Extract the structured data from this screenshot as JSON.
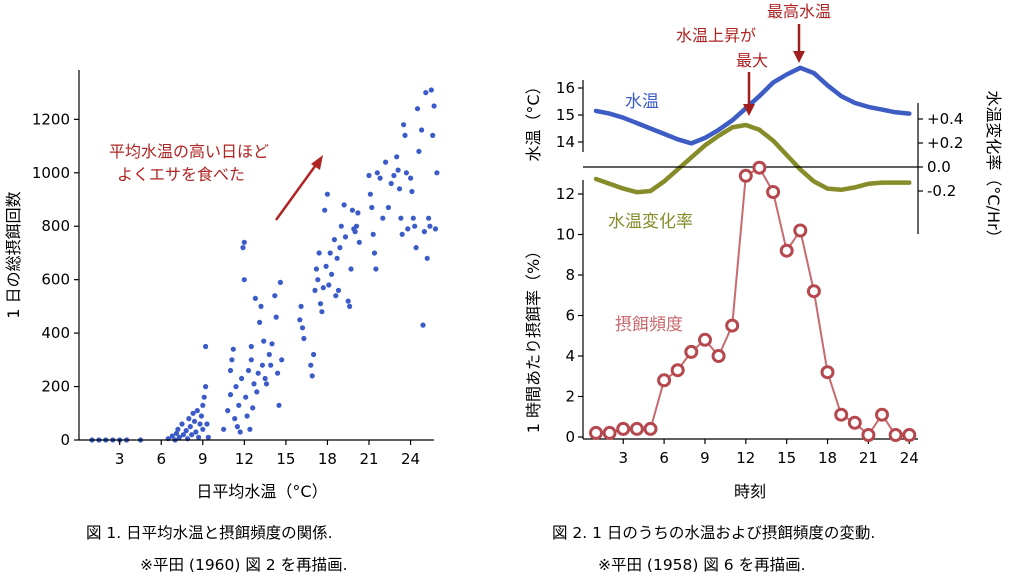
{
  "chart_data": [
    {
      "type": "scatter",
      "ylabel": "1 日の総摂餌回数",
      "xlabel": "日平均水温（°C）",
      "xticks": [
        3,
        6,
        9,
        12,
        15,
        18,
        21,
        24
      ],
      "yticks": [
        0,
        200,
        400,
        600,
        800,
        1000,
        1200
      ],
      "xlim": [
        0,
        26.5
      ],
      "ylim": [
        0,
        1330
      ],
      "color": "#3b5bc8",
      "annotation": [
        "平均水温の高い日ほど",
        "よくエサを食べた"
      ],
      "annotation_color": "#b02424",
      "caption": [
        "図 1. 日平均水温と摂餌頻度の関係.",
        "※平田 (1960) 図 2 を再描画."
      ],
      "points": [
        [
          1.0,
          0
        ],
        [
          1.5,
          0
        ],
        [
          2.0,
          0
        ],
        [
          2.5,
          0
        ],
        [
          3.0,
          0
        ],
        [
          3.5,
          0
        ],
        [
          4.5,
          0
        ],
        [
          6.5,
          5
        ],
        [
          6.8,
          15
        ],
        [
          7.0,
          0
        ],
        [
          7.1,
          25
        ],
        [
          7.2,
          40
        ],
        [
          7.3,
          10
        ],
        [
          7.5,
          60
        ],
        [
          7.6,
          20
        ],
        [
          7.8,
          35
        ],
        [
          7.9,
          5
        ],
        [
          8.0,
          80
        ],
        [
          8.1,
          50
        ],
        [
          8.2,
          20
        ],
        [
          8.3,
          100
        ],
        [
          8.4,
          70
        ],
        [
          8.5,
          30
        ],
        [
          8.6,
          110
        ],
        [
          8.7,
          10
        ],
        [
          8.8,
          60
        ],
        [
          8.9,
          90
        ],
        [
          9.0,
          40
        ],
        [
          9.0,
          130
        ],
        [
          9.1,
          160
        ],
        [
          9.2,
          200
        ],
        [
          9.2,
          350
        ],
        [
          9.3,
          60
        ],
        [
          9.4,
          10
        ],
        [
          10.5,
          40
        ],
        [
          10.8,
          110
        ],
        [
          11.0,
          170
        ],
        [
          11.0,
          260
        ],
        [
          11.1,
          300
        ],
        [
          11.2,
          340
        ],
        [
          11.3,
          80
        ],
        [
          11.4,
          200
        ],
        [
          11.5,
          50
        ],
        [
          11.6,
          130
        ],
        [
          11.7,
          30
        ],
        [
          11.8,
          230
        ],
        [
          11.9,
          720
        ],
        [
          12.0,
          740
        ],
        [
          12.0,
          600
        ],
        [
          12.1,
          160
        ],
        [
          12.2,
          90
        ],
        [
          12.3,
          260
        ],
        [
          12.4,
          40
        ],
        [
          12.5,
          300
        ],
        [
          12.5,
          350
        ],
        [
          12.6,
          120
        ],
        [
          12.7,
          210
        ],
        [
          12.8,
          530
        ],
        [
          12.9,
          180
        ],
        [
          13.0,
          250
        ],
        [
          13.1,
          440
        ],
        [
          13.2,
          500
        ],
        [
          13.3,
          280
        ],
        [
          13.4,
          370
        ],
        [
          13.5,
          230
        ],
        [
          13.6,
          210
        ],
        [
          13.8,
          320
        ],
        [
          13.9,
          280
        ],
        [
          14.0,
          360
        ],
        [
          14.2,
          540
        ],
        [
          14.3,
          460
        ],
        [
          14.4,
          250
        ],
        [
          14.5,
          130
        ],
        [
          14.6,
          590
        ],
        [
          14.7,
          300
        ],
        [
          16.0,
          450
        ],
        [
          16.1,
          500
        ],
        [
          16.2,
          420
        ],
        [
          16.3,
          380
        ],
        [
          16.8,
          280
        ],
        [
          16.9,
          240
        ],
        [
          17.0,
          320
        ],
        [
          17.1,
          560
        ],
        [
          17.2,
          640
        ],
        [
          17.3,
          600
        ],
        [
          17.4,
          700
        ],
        [
          17.5,
          510
        ],
        [
          17.6,
          480
        ],
        [
          17.7,
          570
        ],
        [
          17.8,
          860
        ],
        [
          17.9,
          650
        ],
        [
          18.0,
          920
        ],
        [
          18.1,
          580
        ],
        [
          18.2,
          700
        ],
        [
          18.3,
          620
        ],
        [
          18.5,
          750
        ],
        [
          18.6,
          540
        ],
        [
          18.7,
          680
        ],
        [
          18.8,
          560
        ],
        [
          18.9,
          720
        ],
        [
          19.0,
          800
        ],
        [
          19.2,
          880
        ],
        [
          19.3,
          760
        ],
        [
          19.5,
          520
        ],
        [
          19.6,
          500
        ],
        [
          19.7,
          640
        ],
        [
          19.8,
          860
        ],
        [
          19.9,
          790
        ],
        [
          20.0,
          780
        ],
        [
          20.1,
          800
        ],
        [
          20.2,
          850
        ],
        [
          20.3,
          740
        ],
        [
          21.0,
          990
        ],
        [
          21.1,
          920
        ],
        [
          21.2,
          870
        ],
        [
          21.3,
          770
        ],
        [
          21.4,
          700
        ],
        [
          21.5,
          640
        ],
        [
          21.6,
          1000
        ],
        [
          21.8,
          980
        ],
        [
          22.0,
          830
        ],
        [
          22.2,
          1040
        ],
        [
          22.4,
          870
        ],
        [
          22.6,
          960
        ],
        [
          22.8,
          990
        ],
        [
          23.0,
          1060
        ],
        [
          23.1,
          1010
        ],
        [
          23.2,
          940
        ],
        [
          23.3,
          830
        ],
        [
          23.4,
          770
        ],
        [
          23.5,
          1180
        ],
        [
          23.6,
          1140
        ],
        [
          23.7,
          1000
        ],
        [
          23.8,
          790
        ],
        [
          24.0,
          980
        ],
        [
          24.1,
          930
        ],
        [
          24.2,
          830
        ],
        [
          24.3,
          800
        ],
        [
          24.4,
          720
        ],
        [
          24.5,
          1240
        ],
        [
          24.6,
          1080
        ],
        [
          24.8,
          1160
        ],
        [
          24.9,
          430
        ],
        [
          25.0,
          780
        ],
        [
          25.1,
          1300
        ],
        [
          25.2,
          680
        ],
        [
          25.3,
          830
        ],
        [
          25.4,
          800
        ],
        [
          25.5,
          1310
        ],
        [
          25.6,
          1140
        ],
        [
          25.7,
          1250
        ],
        [
          25.8,
          790
        ],
        [
          25.9,
          1000
        ]
      ]
    },
    {
      "type": "line",
      "xlabel": "時刻",
      "xticks": [
        3,
        6,
        9,
        12,
        15,
        18,
        21,
        24
      ],
      "caption": [
        "図 2. 1 日のうちの水温および摂餌頻度の変動.",
        "※平田 (1958) 図 6 を再描画."
      ],
      "left_upper_axis": {
        "label": "水温（°C）",
        "ticks": [
          14,
          15,
          16
        ],
        "ylim": [
          13.3,
          16.4
        ]
      },
      "right_axis": {
        "label": "水温変化率（°C/Hr）",
        "ticks": [
          0.4,
          0.2,
          0.0,
          -0.2
        ],
        "tick_labels": [
          "+0.4",
          "+0.2",
          "0.0",
          "-0.2"
        ],
        "ylim": [
          -0.3,
          0.45
        ]
      },
      "left_lower_axis": {
        "label": "1 時間あたり摂餌率（%）",
        "ticks": [
          0,
          2,
          4,
          6,
          8,
          10,
          12
        ],
        "ylim": [
          0,
          13.5
        ]
      },
      "annotations": [
        {
          "text": [
            "水温上昇が",
            "最大"
          ],
          "x": 12,
          "color": "#a01e1e"
        },
        {
          "text": [
            "最高水温"
          ],
          "x": 16,
          "color": "#a01e1e"
        }
      ],
      "series": [
        {
          "name": "水温",
          "color": "#3d5cc4",
          "axis": "left_upper",
          "x": [
            1,
            2,
            3,
            4,
            5,
            6,
            7,
            8,
            9,
            10,
            11,
            12,
            13,
            14,
            15,
            16,
            17,
            18,
            19,
            20,
            21,
            22,
            23,
            24
          ],
          "values": [
            15.15,
            15.05,
            14.9,
            14.7,
            14.5,
            14.3,
            14.1,
            13.95,
            14.15,
            14.45,
            14.8,
            15.25,
            15.7,
            16.2,
            16.5,
            16.75,
            16.55,
            16.1,
            15.7,
            15.45,
            15.3,
            15.2,
            15.1,
            15.05
          ]
        },
        {
          "name": "水温変化率",
          "color": "#868c2a",
          "axis": "right",
          "x": [
            1,
            2,
            3,
            4,
            5,
            6,
            7,
            8,
            9,
            10,
            11,
            12,
            13,
            14,
            15,
            16,
            17,
            18,
            19,
            20,
            21,
            22,
            23,
            24
          ],
          "values": [
            -0.1,
            -0.14,
            -0.18,
            -0.21,
            -0.2,
            -0.12,
            -0.02,
            0.08,
            0.18,
            0.26,
            0.33,
            0.35,
            0.31,
            0.22,
            0.1,
            -0.02,
            -0.12,
            -0.18,
            -0.19,
            -0.17,
            -0.14,
            -0.13,
            -0.13,
            -0.13
          ]
        },
        {
          "name": "摂餌頻度",
          "color": "#c86a6e",
          "axis": "left_lower",
          "x": [
            1,
            2,
            3,
            4,
            5,
            6,
            7,
            8,
            9,
            10,
            11,
            12,
            13,
            14,
            15,
            16,
            17,
            18,
            19,
            20,
            21,
            22,
            23,
            24
          ],
          "values": [
            0.2,
            0.2,
            0.4,
            0.4,
            0.4,
            2.8,
            3.3,
            4.2,
            4.8,
            4.0,
            5.5,
            12.9,
            13.3,
            12.1,
            9.2,
            10.2,
            7.2,
            3.2,
            1.1,
            0.7,
            0.1,
            1.1,
            0.1,
            0.1
          ]
        }
      ]
    }
  ]
}
